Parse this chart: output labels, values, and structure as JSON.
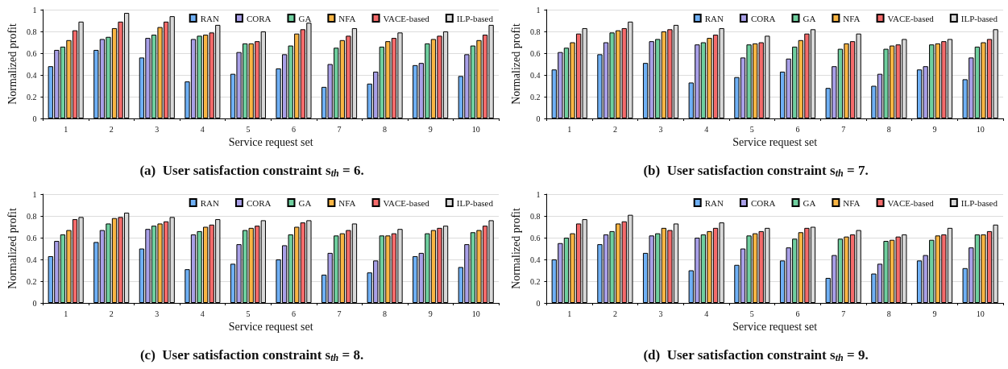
{
  "chart_data": [
    {
      "type": "bar",
      "title": "(a)  User satisfaction constraint s$_{th}$ = 6.",
      "xlabel": "Service request set",
      "ylabel": "Normalized profit",
      "categories": [
        "1",
        "2",
        "3",
        "4",
        "5",
        "6",
        "7",
        "8",
        "9",
        "10"
      ],
      "ylim": [
        0,
        1
      ],
      "yticks": [
        0,
        0.2,
        0.4,
        0.6,
        0.8,
        1
      ],
      "grid": "y",
      "legend": "top right",
      "series": [
        {
          "name": "RAN",
          "color": "#6fb0f5",
          "values": [
            0.48,
            0.63,
            0.56,
            0.34,
            0.41,
            0.46,
            0.29,
            0.32,
            0.49,
            0.39
          ]
        },
        {
          "name": "CORA",
          "color": "#a9a0e8",
          "values": [
            0.63,
            0.73,
            0.74,
            0.73,
            0.61,
            0.59,
            0.5,
            0.43,
            0.51,
            0.59
          ]
        },
        {
          "name": "GA",
          "color": "#6fcf9f",
          "values": [
            0.66,
            0.75,
            0.77,
            0.76,
            0.69,
            0.67,
            0.65,
            0.66,
            0.69,
            0.67
          ]
        },
        {
          "name": "NFA",
          "color": "#f9b544",
          "values": [
            0.72,
            0.83,
            0.84,
            0.77,
            0.69,
            0.78,
            0.72,
            0.71,
            0.73,
            0.72
          ]
        },
        {
          "name": "VACE-based",
          "color": "#f46b6b",
          "values": [
            0.81,
            0.89,
            0.89,
            0.79,
            0.71,
            0.82,
            0.76,
            0.74,
            0.76,
            0.77
          ]
        },
        {
          "name": "ILP-based",
          "color": "#d9d9d9",
          "values": [
            0.89,
            0.97,
            0.94,
            0.86,
            0.8,
            0.88,
            0.83,
            0.79,
            0.8,
            0.86
          ]
        }
      ]
    },
    {
      "type": "bar",
      "title": "(b)  User satisfaction constraint s$_{th}$ = 7.",
      "xlabel": "Service request set",
      "ylabel": "Normalized profit",
      "categories": [
        "1",
        "2",
        "3",
        "4",
        "5",
        "6",
        "7",
        "8",
        "9",
        "10"
      ],
      "ylim": [
        0,
        1
      ],
      "yticks": [
        0,
        0.2,
        0.4,
        0.6,
        0.8,
        1
      ],
      "grid": "y",
      "legend": "top right",
      "series": [
        {
          "name": "RAN",
          "color": "#6fb0f5",
          "values": [
            0.45,
            0.59,
            0.51,
            0.33,
            0.38,
            0.43,
            0.28,
            0.3,
            0.45,
            0.36
          ]
        },
        {
          "name": "CORA",
          "color": "#a9a0e8",
          "values": [
            0.61,
            0.7,
            0.71,
            0.68,
            0.56,
            0.55,
            0.48,
            0.41,
            0.48,
            0.56
          ]
        },
        {
          "name": "GA",
          "color": "#6fcf9f",
          "values": [
            0.65,
            0.79,
            0.73,
            0.7,
            0.68,
            0.66,
            0.64,
            0.64,
            0.68,
            0.66
          ]
        },
        {
          "name": "NFA",
          "color": "#f9b544",
          "values": [
            0.7,
            0.81,
            0.8,
            0.74,
            0.69,
            0.72,
            0.69,
            0.67,
            0.69,
            0.7
          ]
        },
        {
          "name": "VACE-based",
          "color": "#f46b6b",
          "values": [
            0.78,
            0.83,
            0.82,
            0.77,
            0.7,
            0.78,
            0.71,
            0.68,
            0.71,
            0.73
          ]
        },
        {
          "name": "ILP-based",
          "color": "#d9d9d9",
          "values": [
            0.83,
            0.89,
            0.86,
            0.83,
            0.76,
            0.82,
            0.78,
            0.73,
            0.73,
            0.82
          ]
        }
      ]
    },
    {
      "type": "bar",
      "title": "(c)  User satisfaction constraint s$_{th}$ = 8.",
      "xlabel": "Service request set",
      "ylabel": "Normalized profit",
      "categories": [
        "1",
        "2",
        "3",
        "4",
        "5",
        "6",
        "7",
        "8",
        "9",
        "10"
      ],
      "ylim": [
        0,
        1
      ],
      "yticks": [
        0,
        0.2,
        0.4,
        0.6,
        0.8,
        1
      ],
      "grid": "y",
      "legend": "top right",
      "series": [
        {
          "name": "RAN",
          "color": "#6fb0f5",
          "values": [
            0.43,
            0.56,
            0.5,
            0.31,
            0.36,
            0.4,
            0.26,
            0.28,
            0.43,
            0.33
          ]
        },
        {
          "name": "CORA",
          "color": "#a9a0e8",
          "values": [
            0.57,
            0.67,
            0.68,
            0.63,
            0.54,
            0.53,
            0.46,
            0.39,
            0.46,
            0.54
          ]
        },
        {
          "name": "GA",
          "color": "#6fcf9f",
          "values": [
            0.63,
            0.73,
            0.71,
            0.66,
            0.67,
            0.63,
            0.62,
            0.62,
            0.64,
            0.65
          ]
        },
        {
          "name": "NFA",
          "color": "#f9b544",
          "values": [
            0.67,
            0.78,
            0.73,
            0.7,
            0.69,
            0.7,
            0.64,
            0.62,
            0.67,
            0.67
          ]
        },
        {
          "name": "VACE-based",
          "color": "#f46b6b",
          "values": [
            0.77,
            0.79,
            0.75,
            0.72,
            0.71,
            0.74,
            0.67,
            0.64,
            0.69,
            0.71
          ]
        },
        {
          "name": "ILP-based",
          "color": "#d9d9d9",
          "values": [
            0.79,
            0.83,
            0.79,
            0.77,
            0.76,
            0.76,
            0.73,
            0.68,
            0.71,
            0.76
          ]
        }
      ]
    },
    {
      "type": "bar",
      "title": "(d)  User satisfaction constraint s$_{th}$ = 9.",
      "xlabel": "Service request set",
      "ylabel": "Normalized profit",
      "categories": [
        "1",
        "2",
        "3",
        "4",
        "5",
        "6",
        "7",
        "8",
        "9",
        "10"
      ],
      "ylim": [
        0,
        1
      ],
      "yticks": [
        0,
        0.2,
        0.4,
        0.6,
        0.8,
        1
      ],
      "grid": "y",
      "legend": "top right",
      "series": [
        {
          "name": "RAN",
          "color": "#6fb0f5",
          "values": [
            0.4,
            0.54,
            0.46,
            0.3,
            0.35,
            0.39,
            0.23,
            0.27,
            0.39,
            0.32
          ]
        },
        {
          "name": "CORA",
          "color": "#a9a0e8",
          "values": [
            0.55,
            0.63,
            0.62,
            0.6,
            0.5,
            0.51,
            0.44,
            0.36,
            0.44,
            0.51
          ]
        },
        {
          "name": "GA",
          "color": "#6fcf9f",
          "values": [
            0.6,
            0.66,
            0.64,
            0.63,
            0.62,
            0.59,
            0.59,
            0.57,
            0.58,
            0.63
          ]
        },
        {
          "name": "NFA",
          "color": "#f9b544",
          "values": [
            0.64,
            0.73,
            0.69,
            0.66,
            0.64,
            0.65,
            0.61,
            0.58,
            0.62,
            0.63
          ]
        },
        {
          "name": "VACE-based",
          "color": "#f46b6b",
          "values": [
            0.73,
            0.75,
            0.67,
            0.69,
            0.66,
            0.69,
            0.63,
            0.61,
            0.63,
            0.66
          ]
        },
        {
          "name": "ILP-based",
          "color": "#d9d9d9",
          "values": [
            0.77,
            0.81,
            0.73,
            0.74,
            0.69,
            0.7,
            0.67,
            0.63,
            0.69,
            0.72
          ]
        }
      ]
    }
  ]
}
